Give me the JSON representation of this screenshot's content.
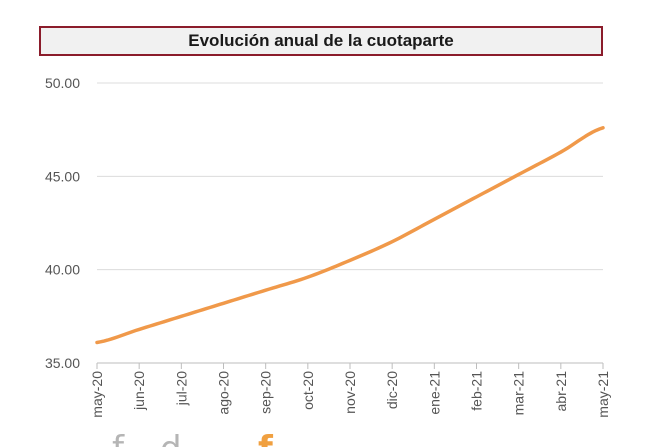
{
  "chart_data": {
    "type": "line",
    "title": "Evolución anual de la cuotaparte",
    "xlabel": "",
    "ylabel": "",
    "categories": [
      "may-20",
      "jun-20",
      "jul-20",
      "ago-20",
      "sep-20",
      "oct-20",
      "nov-20",
      "dic-20",
      "ene-21",
      "feb-21",
      "mar-21",
      "abr-21",
      "may-21"
    ],
    "yticks": [
      "35.00",
      "40.00",
      "45.00",
      "50.00"
    ],
    "ylim": [
      35,
      50
    ],
    "grid": true,
    "legend": "none",
    "series": [
      {
        "values": [
          36.1,
          36.8,
          37.5,
          38.2,
          38.9,
          39.6,
          40.5,
          41.5,
          42.7,
          43.9,
          45.1,
          46.3,
          47.6
        ],
        "color": "#f0994a"
      }
    ]
  }
}
